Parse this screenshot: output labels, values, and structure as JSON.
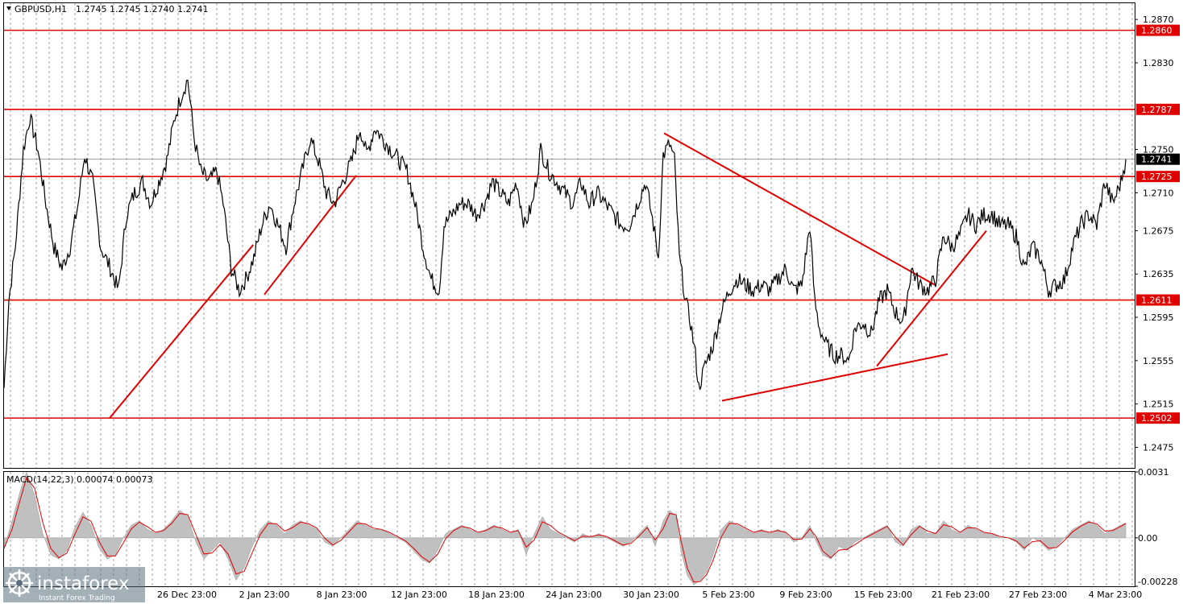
{
  "header": {
    "symbol": "GBPUSD,H1",
    "ohlc": "1.2745 1.2745 1.2740 1.2741"
  },
  "macd": {
    "label": "MACD(14,22,3) 0.00074 0.00073",
    "axis_labels": [
      "0.0031",
      "0.00",
      "-0.00228"
    ]
  },
  "watermark": {
    "brand": "instaforex",
    "tagline": "Instant Forex Trading"
  },
  "colors": {
    "level": "#e00000",
    "price": "#000000",
    "histogram": "#c0c0c0",
    "signal": "#e00000",
    "highlight_label": "#e00000",
    "current_label": "#000000"
  },
  "chart_data": {
    "type": "candlestick",
    "symbol": "GBPUSD",
    "timeframe": "H1",
    "ylim": [
      1.2456,
      1.2885
    ],
    "y_ticks": [
      1.287,
      1.283,
      1.275,
      1.271,
      1.2675,
      1.2635,
      1.2595,
      1.2555,
      1.2515,
      1.2475
    ],
    "x_ticks": [
      "26 Dec 23:00",
      "2 Jan 23:00",
      "8 Jan 23:00",
      "12 Jan 23:00",
      "18 Jan 23:00",
      "24 Jan 23:00",
      "30 Jan 23:00",
      "5 Feb 23:00",
      "9 Feb 23:00",
      "15 Feb 23:00",
      "21 Feb 23:00",
      "27 Feb 23:00",
      "4 Mar 23:00"
    ],
    "current_price": 1.2741,
    "levels": [
      1.286,
      1.2787,
      1.2725,
      1.2611,
      1.2502
    ],
    "trendlines": [
      {
        "from": [
          "19 Dec 23:00",
          1.2502
        ],
        "to": [
          "1 Jan 23:00",
          1.2662
        ]
      },
      {
        "from": [
          "2 Jan 23:00",
          1.2616
        ],
        "to": [
          "9 Jan 17:00",
          1.2726
        ]
      },
      {
        "from": [
          "31 Jan 23:00",
          1.2765
        ],
        "to": [
          "19 Feb 23:00",
          1.2625
        ]
      },
      {
        "from": [
          "5 Feb 11:00",
          1.2518
        ],
        "to": [
          "20 Feb 23:00",
          1.2561
        ]
      },
      {
        "from": [
          "15 Feb 11:00",
          1.255
        ],
        "to": [
          "23 Feb 23:00",
          1.2675
        ]
      }
    ],
    "price_path": [
      [
        0,
        1.253
      ],
      [
        6,
        1.2611
      ],
      [
        14,
        1.266
      ],
      [
        24,
        1.275
      ],
      [
        32,
        1.278
      ],
      [
        42,
        1.275
      ],
      [
        52,
        1.27
      ],
      [
        62,
        1.266
      ],
      [
        72,
        1.264
      ],
      [
        82,
        1.266
      ],
      [
        92,
        1.27
      ],
      [
        100,
        1.2745
      ],
      [
        110,
        1.272
      ],
      [
        120,
        1.266
      ],
      [
        132,
        1.264
      ],
      [
        142,
        1.262
      ],
      [
        152,
        1.269
      ],
      [
        162,
        1.271
      ],
      [
        172,
        1.272
      ],
      [
        182,
        1.27
      ],
      [
        192,
        1.272
      ],
      [
        202,
        1.274
      ],
      [
        212,
        1.278
      ],
      [
        220,
        1.28
      ],
      [
        228,
        1.2815
      ],
      [
        236,
        1.276
      ],
      [
        244,
        1.273
      ],
      [
        254,
        1.272
      ],
      [
        264,
        1.273
      ],
      [
        272,
        1.27
      ],
      [
        282,
        1.264
      ],
      [
        292,
        1.262
      ],
      [
        300,
        1.263
      ],
      [
        310,
        1.265
      ],
      [
        320,
        1.268
      ],
      [
        330,
        1.27
      ],
      [
        340,
        1.268
      ],
      [
        350,
        1.266
      ],
      [
        360,
        1.27
      ],
      [
        370,
        1.273
      ],
      [
        380,
        1.276
      ],
      [
        390,
        1.274
      ],
      [
        400,
        1.271
      ],
      [
        410,
        1.27
      ],
      [
        420,
        1.272
      ],
      [
        432,
        1.274
      ],
      [
        442,
        1.277
      ],
      [
        450,
        1.2745
      ],
      [
        460,
        1.277
      ],
      [
        470,
        1.276
      ],
      [
        480,
        1.275
      ],
      [
        490,
        1.274
      ],
      [
        500,
        1.273
      ],
      [
        510,
        1.27
      ],
      [
        520,
        1.266
      ],
      [
        530,
        1.263
      ],
      [
        540,
        1.262
      ],
      [
        546,
        1.268
      ],
      [
        556,
        1.269
      ],
      [
        566,
        1.27
      ],
      [
        576,
        1.27
      ],
      [
        586,
        1.269
      ],
      [
        596,
        1.27
      ],
      [
        606,
        1.272
      ],
      [
        616,
        1.271
      ],
      [
        626,
        1.27
      ],
      [
        636,
        1.272
      ],
      [
        646,
        1.268
      ],
      [
        656,
        1.27
      ],
      [
        666,
        1.275
      ],
      [
        676,
        1.273
      ],
      [
        686,
        1.272
      ],
      [
        696,
        1.271
      ],
      [
        706,
        1.27
      ],
      [
        716,
        1.272
      ],
      [
        726,
        1.27
      ],
      [
        736,
        1.271
      ],
      [
        746,
        1.27
      ],
      [
        756,
        1.269
      ],
      [
        766,
        1.268
      ],
      [
        776,
        1.268
      ],
      [
        786,
        1.27
      ],
      [
        796,
        1.272
      ],
      [
        806,
        1.268
      ],
      [
        812,
        1.265
      ],
      [
        818,
        1.2745
      ],
      [
        826,
        1.2755
      ],
      [
        832,
        1.274
      ],
      [
        838,
        1.265
      ],
      [
        846,
        1.261
      ],
      [
        852,
        1.259
      ],
      [
        858,
        1.256
      ],
      [
        862,
        1.253
      ],
      [
        870,
        1.255
      ],
      [
        880,
        1.257
      ],
      [
        890,
        1.26
      ],
      [
        900,
        1.262
      ],
      [
        910,
        1.263
      ],
      [
        920,
        1.2625
      ],
      [
        930,
        1.262
      ],
      [
        940,
        1.2625
      ],
      [
        950,
        1.262
      ],
      [
        960,
        1.263
      ],
      [
        970,
        1.264
      ],
      [
        980,
        1.262
      ],
      [
        990,
        1.2625
      ],
      [
        1000,
        1.268
      ],
      [
        1006,
        1.261
      ],
      [
        1012,
        1.2585
      ],
      [
        1020,
        1.257
      ],
      [
        1030,
        1.256
      ],
      [
        1040,
        1.256
      ],
      [
        1048,
        1.2555
      ],
      [
        1056,
        1.2585
      ],
      [
        1066,
        1.259
      ],
      [
        1076,
        1.258
      ],
      [
        1086,
        1.261
      ],
      [
        1096,
        1.262
      ],
      [
        1106,
        1.26
      ],
      [
        1116,
        1.259
      ],
      [
        1126,
        1.264
      ],
      [
        1136,
        1.2625
      ],
      [
        1146,
        1.262
      ],
      [
        1156,
        1.263
      ],
      [
        1166,
        1.267
      ],
      [
        1176,
        1.266
      ],
      [
        1186,
        1.267
      ],
      [
        1196,
        1.269
      ],
      [
        1206,
        1.268
      ],
      [
        1216,
        1.269
      ],
      [
        1226,
        1.269
      ],
      [
        1236,
        1.268
      ],
      [
        1246,
        1.268
      ],
      [
        1256,
        1.267
      ],
      [
        1266,
        1.264
      ],
      [
        1276,
        1.266
      ],
      [
        1286,
        1.265
      ],
      [
        1296,
        1.262
      ],
      [
        1306,
        1.2625
      ],
      [
        1316,
        1.263
      ],
      [
        1326,
        1.266
      ],
      [
        1336,
        1.268
      ],
      [
        1346,
        1.269
      ],
      [
        1356,
        1.268
      ],
      [
        1366,
        1.272
      ],
      [
        1376,
        1.27
      ],
      [
        1386,
        1.272
      ],
      [
        1392,
        1.2741
      ]
    ],
    "macd_path": [
      [
        0,
        -0.0005
      ],
      [
        10,
        0.0008
      ],
      [
        20,
        0.0022
      ],
      [
        28,
        0.0031
      ],
      [
        38,
        0.002
      ],
      [
        48,
        0.0002
      ],
      [
        58,
        -0.0008
      ],
      [
        68,
        -0.001
      ],
      [
        78,
        -0.0006
      ],
      [
        88,
        0.0005
      ],
      [
        98,
        0.0012
      ],
      [
        108,
        0.0006
      ],
      [
        118,
        -0.0005
      ],
      [
        128,
        -0.001
      ],
      [
        138,
        -0.0008
      ],
      [
        148,
        0.0
      ],
      [
        158,
        0.0006
      ],
      [
        168,
        0.0008
      ],
      [
        178,
        0.0004
      ],
      [
        188,
        0.0002
      ],
      [
        198,
        0.0004
      ],
      [
        208,
        0.0008
      ],
      [
        218,
        0.0013
      ],
      [
        228,
        0.001
      ],
      [
        238,
        -0.0002
      ],
      [
        248,
        -0.001
      ],
      [
        258,
        -0.0006
      ],
      [
        268,
        -0.0002
      ],
      [
        278,
        -0.001
      ],
      [
        288,
        -0.002
      ],
      [
        298,
        -0.0014
      ],
      [
        308,
        -0.0004
      ],
      [
        318,
        0.0004
      ],
      [
        328,
        0.0008
      ],
      [
        338,
        0.0006
      ],
      [
        348,
        0.0002
      ],
      [
        358,
        0.0006
      ],
      [
        368,
        0.0008
      ],
      [
        378,
        0.0006
      ],
      [
        388,
        0.0004
      ],
      [
        398,
        -0.0002
      ],
      [
        408,
        -0.0004
      ],
      [
        418,
        0.0
      ],
      [
        428,
        0.0004
      ],
      [
        438,
        0.0008
      ],
      [
        448,
        0.0006
      ],
      [
        458,
        0.0004
      ],
      [
        468,
        0.0004
      ],
      [
        478,
        0.0002
      ],
      [
        488,
        0.0
      ],
      [
        498,
        -0.0002
      ],
      [
        508,
        -0.0006
      ],
      [
        518,
        -0.001
      ],
      [
        528,
        -0.0012
      ],
      [
        538,
        -0.0006
      ],
      [
        548,
        0.0002
      ],
      [
        558,
        0.0004
      ],
      [
        568,
        0.0006
      ],
      [
        578,
        0.0004
      ],
      [
        588,
        0.0002
      ],
      [
        598,
        0.0004
      ],
      [
        608,
        0.0006
      ],
      [
        618,
        0.0004
      ],
      [
        628,
        0.0002
      ],
      [
        638,
        0.0004
      ],
      [
        648,
        -0.0008
      ],
      [
        658,
        0.0002
      ],
      [
        668,
        0.001
      ],
      [
        678,
        0.0004
      ],
      [
        688,
        0.0002
      ],
      [
        698,
        0.0
      ],
      [
        708,
        -0.0002
      ],
      [
        718,
        0.0002
      ],
      [
        728,
        0.0
      ],
      [
        738,
        0.0002
      ],
      [
        748,
        0.0
      ],
      [
        758,
        -0.0002
      ],
      [
        768,
        -0.0004
      ],
      [
        778,
        -0.0002
      ],
      [
        788,
        0.0002
      ],
      [
        798,
        0.0006
      ],
      [
        808,
        -0.0004
      ],
      [
        818,
        0.0008
      ],
      [
        826,
        0.0013
      ],
      [
        834,
        0.001
      ],
      [
        840,
        -0.0006
      ],
      [
        848,
        -0.0018
      ],
      [
        856,
        -0.0022
      ],
      [
        864,
        -0.002
      ],
      [
        872,
        -0.0016
      ],
      [
        880,
        -0.0008
      ],
      [
        890,
        0.0004
      ],
      [
        900,
        0.0008
      ],
      [
        910,
        0.0006
      ],
      [
        920,
        0.0004
      ],
      [
        930,
        0.0002
      ],
      [
        940,
        0.0004
      ],
      [
        950,
        0.0002
      ],
      [
        960,
        0.0004
      ],
      [
        970,
        0.0002
      ],
      [
        980,
        -0.0002
      ],
      [
        990,
        0.0
      ],
      [
        1000,
        0.0006
      ],
      [
        1008,
        -0.0002
      ],
      [
        1016,
        -0.0008
      ],
      [
        1026,
        -0.001
      ],
      [
        1036,
        -0.0004
      ],
      [
        1046,
        -0.0006
      ],
      [
        1056,
        -0.0002
      ],
      [
        1066,
        0.0
      ],
      [
        1076,
        0.0002
      ],
      [
        1086,
        0.0004
      ],
      [
        1096,
        0.0006
      ],
      [
        1106,
        -0.0002
      ],
      [
        1116,
        -0.0004
      ],
      [
        1126,
        0.0004
      ],
      [
        1136,
        0.0006
      ],
      [
        1146,
        0.0002
      ],
      [
        1156,
        0.0002
      ],
      [
        1166,
        0.0008
      ],
      [
        1176,
        0.0004
      ],
      [
        1186,
        0.0002
      ],
      [
        1196,
        0.0006
      ],
      [
        1206,
        0.0004
      ],
      [
        1216,
        0.0002
      ],
      [
        1226,
        0.0002
      ],
      [
        1236,
        0.0
      ],
      [
        1246,
        0.0
      ],
      [
        1256,
        -0.0002
      ],
      [
        1266,
        -0.0006
      ],
      [
        1276,
        0.0
      ],
      [
        1286,
        -0.0002
      ],
      [
        1296,
        -0.0006
      ],
      [
        1306,
        -0.0004
      ],
      [
        1316,
        0.0
      ],
      [
        1326,
        0.0004
      ],
      [
        1336,
        0.0006
      ],
      [
        1346,
        0.0008
      ],
      [
        1356,
        0.0006
      ],
      [
        1366,
        0.0002
      ],
      [
        1376,
        0.0004
      ],
      [
        1386,
        0.0006
      ],
      [
        1392,
        0.0007
      ]
    ]
  }
}
